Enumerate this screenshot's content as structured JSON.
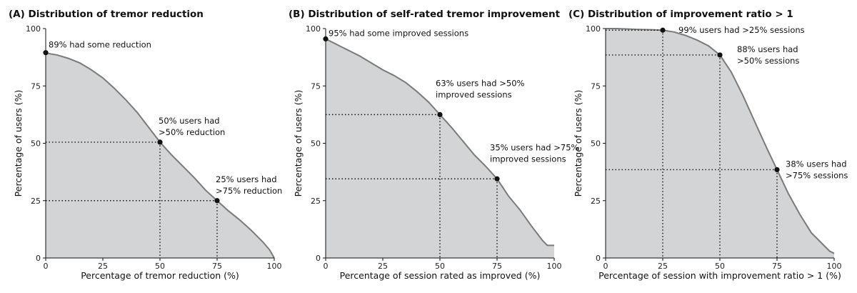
{
  "chart_data": [
    {
      "type": "area",
      "title": "(A) Distribution of tremor reduction",
      "xlabel": "Percentage of tremor reduction (%)",
      "ylabel": "Percentage of users (%)",
      "xlim": [
        0,
        100
      ],
      "ylim": [
        0,
        100
      ],
      "xticks": [
        "0",
        "25",
        "50",
        "75",
        "100"
      ],
      "yticks": [
        "0",
        "25",
        "50",
        "75",
        "100"
      ],
      "x": [
        0,
        2,
        5,
        10,
        15,
        20,
        25,
        30,
        35,
        40,
        45,
        50,
        55,
        60,
        65,
        70,
        75,
        80,
        85,
        90,
        95,
        98,
        100
      ],
      "y": [
        89.5,
        89,
        88.5,
        87,
        85,
        82,
        78.5,
        74,
        69,
        63.5,
        57,
        50.5,
        45,
        40,
        35,
        29.5,
        25,
        20.5,
        16.5,
        12,
        7,
        3.5,
        0
      ],
      "markers": [
        {
          "x": 0,
          "y": 89.5,
          "guide": false,
          "label": [
            "89% had some reduction"
          ]
        },
        {
          "x": 50,
          "y": 50.5,
          "guide": true,
          "label": [
            "50% users had",
            ">50% reduction"
          ]
        },
        {
          "x": 75,
          "y": 25,
          "guide": true,
          "label": [
            "25% users had",
            ">75% reduction"
          ]
        }
      ],
      "grid": false
    },
    {
      "type": "area",
      "title": "(B) Distribution of self-rated tremor improvement",
      "xlabel": "Percentage of session rated as improved (%)",
      "ylabel": "Percentage of users (%)",
      "xlim": [
        0,
        100
      ],
      "ylim": [
        0,
        100
      ],
      "xticks": [
        "0",
        "25",
        "50",
        "75",
        "100"
      ],
      "yticks": [
        "0",
        "25",
        "50",
        "75",
        "100"
      ],
      "x": [
        0,
        2,
        5,
        10,
        15,
        20,
        25,
        30,
        35,
        40,
        45,
        50,
        55,
        60,
        65,
        70,
        75,
        80,
        85,
        90,
        95,
        97,
        100
      ],
      "y": [
        95.5,
        94.5,
        93,
        90.5,
        88,
        85,
        82,
        79.5,
        76.5,
        72.5,
        68,
        62.5,
        57,
        51,
        45,
        40,
        34.5,
        27,
        21,
        14,
        7.5,
        5.5,
        5.5
      ],
      "markers": [
        {
          "x": 0,
          "y": 95.5,
          "guide": false,
          "label": [
            "95% had some improved sessions"
          ]
        },
        {
          "x": 50,
          "y": 62.5,
          "guide": true,
          "label": [
            "63% users had >50%",
            "improved sessions"
          ]
        },
        {
          "x": 75,
          "y": 34.5,
          "guide": true,
          "label": [
            "35% users had >75%",
            "improved sessions"
          ]
        }
      ],
      "grid": false
    },
    {
      "type": "area",
      "title": "(C) Distribution of improvement ratio > 1",
      "xlabel": "Percentage of session with improvement ratio > 1 (%)",
      "ylabel": "Percentage of users (%)",
      "xlim": [
        0,
        100
      ],
      "ylim": [
        0,
        100
      ],
      "xticks": [
        "0",
        "25",
        "50",
        "75",
        "100"
      ],
      "yticks": [
        "0",
        "25",
        "50",
        "75",
        "100"
      ],
      "x": [
        0,
        5,
        10,
        15,
        20,
        25,
        30,
        35,
        40,
        45,
        50,
        55,
        60,
        65,
        70,
        75,
        80,
        85,
        90,
        95,
        98,
        100
      ],
      "y": [
        100,
        100,
        99.8,
        99.6,
        99.5,
        99.3,
        98.5,
        97,
        95,
        92.5,
        88.5,
        81,
        71,
        60,
        49,
        38.5,
        28,
        19,
        11,
        6,
        3,
        2
      ],
      "markers": [
        {
          "x": 25,
          "y": 99.3,
          "guide": true,
          "label": [
            "99% users had >25% sessions"
          ]
        },
        {
          "x": 50,
          "y": 88.5,
          "guide": true,
          "label": [
            "88% users had",
            ">50% sessions"
          ]
        },
        {
          "x": 75,
          "y": 38.5,
          "guide": true,
          "label": [
            "38% users had",
            ">75% sessions"
          ]
        }
      ],
      "grid": false
    }
  ]
}
